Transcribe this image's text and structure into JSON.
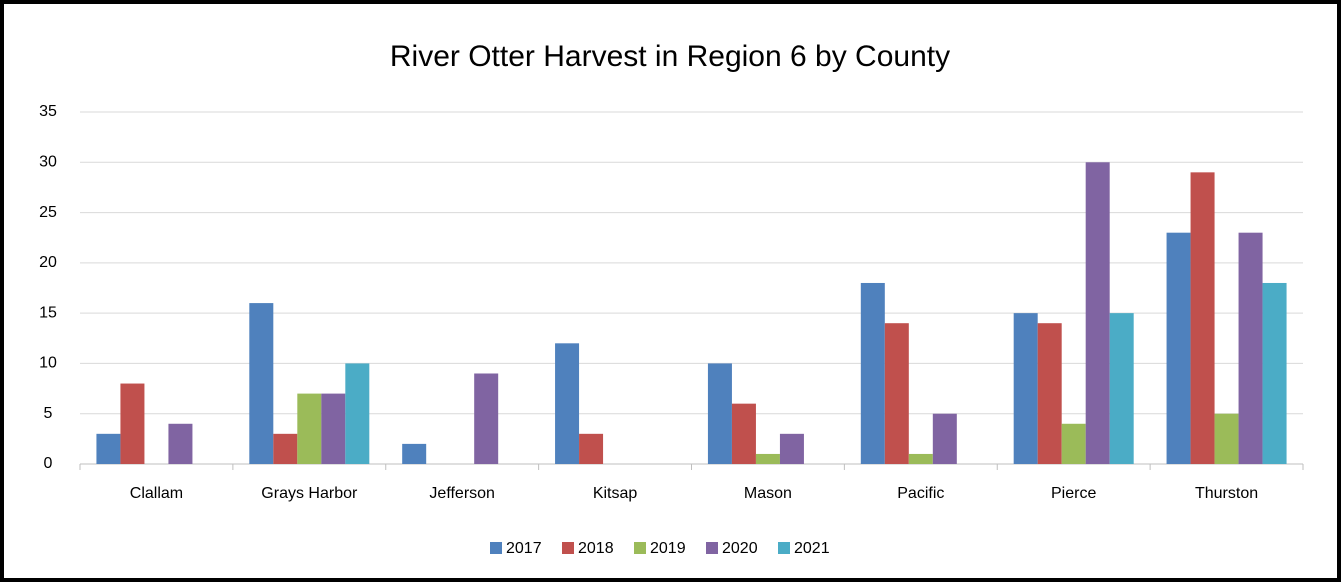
{
  "chart_data": {
    "type": "bar",
    "title": "River Otter Harvest in Region 6 by County",
    "categories": [
      "Clallam",
      "Grays Harbor",
      "Jefferson",
      "Kitsap",
      "Mason",
      "Pacific",
      "Pierce",
      "Thurston"
    ],
    "series": [
      {
        "name": "2017",
        "color": "#4f81bd",
        "values": [
          3,
          16,
          2,
          12,
          10,
          18,
          15,
          23
        ]
      },
      {
        "name": "2018",
        "color": "#c0504d",
        "values": [
          8,
          3,
          0,
          3,
          6,
          14,
          14,
          29
        ]
      },
      {
        "name": "2019",
        "color": "#9bbb59",
        "values": [
          0,
          7,
          0,
          0,
          1,
          1,
          4,
          5
        ]
      },
      {
        "name": "2020",
        "color": "#8064a2",
        "values": [
          4,
          7,
          9,
          0,
          3,
          5,
          30,
          23
        ]
      },
      {
        "name": "2021",
        "color": "#4bacc6",
        "values": [
          0,
          10,
          0,
          0,
          0,
          0,
          15,
          18
        ]
      }
    ],
    "ylim": [
      0,
      35
    ],
    "yticks": [
      0,
      5,
      10,
      15,
      20,
      25,
      30,
      35
    ],
    "grid": true,
    "legend": "bottom"
  }
}
